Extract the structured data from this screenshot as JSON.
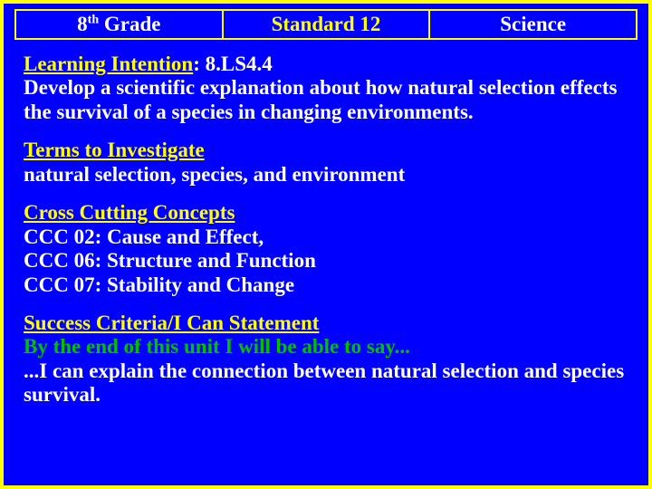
{
  "header": {
    "grade_prefix": "8",
    "grade_suffix": "th",
    "grade_label": " Grade",
    "standard": "Standard 12",
    "subject": "Science"
  },
  "learning_intention": {
    "heading": "Learning Intention",
    "code": ":  8.LS4.4",
    "body": "Develop a scientific explanation about how natural selection effects the survival of a species in changing environments."
  },
  "terms": {
    "heading": "Terms to Investigate",
    "body": "natural selection, species, and environment"
  },
  "ccc": {
    "heading": "Cross Cutting Concepts",
    "line1": "CCC 02: Cause and Effect,",
    "line2": "CCC 06: Structure and Function",
    "line3": "CCC 07: Stability and Change"
  },
  "success": {
    "heading": "Success Criteria/I Can Statement",
    "intro": "By the end of this unit I will be able to say...",
    "statement": "...I can explain the connection between natural selection and species survival."
  },
  "colors": {
    "background": "#0000ff",
    "border": "#ffff00",
    "heading": "#ffff00",
    "body": "#ffffff",
    "accent": "#00c000"
  }
}
